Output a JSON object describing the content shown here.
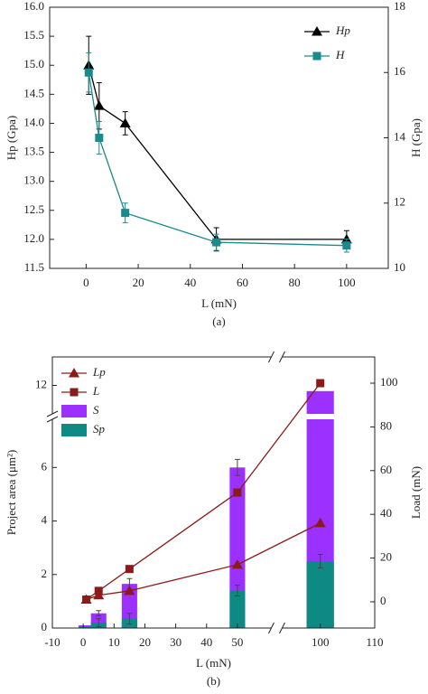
{
  "chart_data": [
    {
      "type": "line",
      "xlabel": "L (mN)",
      "ylabel": "Hp (Gpa)",
      "y2label": "H (Gpa)",
      "caption": "(a)",
      "x": [
        1,
        5,
        15,
        50,
        100
      ],
      "xlim": [
        -14,
        116
      ],
      "xticks": [
        0,
        20,
        40,
        60,
        80,
        100
      ],
      "ylim": [
        11.5,
        16
      ],
      "yticks": [
        11.5,
        {
          "value": 12,
          "label": "12.0"
        },
        12.5,
        {
          "value": 13,
          "label": "13.0"
        },
        13.5,
        {
          "value": 14,
          "label": "14.0"
        },
        14.5,
        {
          "value": 15,
          "label": "15.0"
        },
        15.5,
        {
          "value": 16,
          "label": "16.0"
        }
      ],
      "y2lim": [
        10,
        18
      ],
      "y2ticks": [
        10,
        12,
        14,
        16,
        18
      ],
      "legend": "upper right",
      "series": [
        {
          "name": "Hp",
          "color": "#000000",
          "marker": "triangle",
          "values": [
            15,
            14.3,
            14,
            12,
            12
          ],
          "errors": [
            0.5,
            0.4,
            0.2,
            0.2,
            0.15
          ]
        },
        {
          "name": "H",
          "color": "#1b8a8c",
          "marker": "square",
          "axis": "y2",
          "values": [
            16.0,
            14.0,
            11.7,
            10.8,
            10.7
          ],
          "errors": [
            0.6,
            0.5,
            0.3,
            0.25,
            0.2
          ]
        }
      ]
    },
    {
      "type": "combo",
      "xlabel": "L (mN)",
      "ylabel": "Project area (μm²)",
      "y2label": "Load (mN)",
      "caption": "(b)",
      "x": [
        1,
        5,
        15,
        50,
        100
      ],
      "xlim": [
        -10,
        110
      ],
      "xbreak": [
        61,
        93
      ],
      "xticks": [
        -10,
        0,
        10,
        20,
        30,
        40,
        50,
        100,
        110
      ],
      "ylim": [
        0,
        13
      ],
      "ybreak": [
        7.8,
        11
      ],
      "yticks": [
        0,
        2,
        4,
        6,
        12
      ],
      "y2lim": [
        -12,
        112
      ],
      "y2ticks": [
        0,
        20,
        40,
        60,
        80,
        100
      ],
      "legend": "upper left",
      "series": [
        {
          "name": "Lp",
          "kind": "line",
          "axis": "y2",
          "marker": "triangle",
          "color": "#8b1a1a",
          "values": [
            1,
            3,
            5,
            17,
            36
          ]
        },
        {
          "name": "L",
          "kind": "line",
          "axis": "y2",
          "marker": "square",
          "color": "#8b1a1a",
          "values": [
            1,
            5,
            15,
            50,
            100
          ]
        },
        {
          "name": "S",
          "kind": "bar",
          "color": "#9b30ff",
          "values": [
            0.1,
            0.55,
            1.65,
            6.0,
            11.8
          ],
          "errors": [
            null,
            0.1,
            0.2,
            0.3,
            null
          ]
        },
        {
          "name": "Sp",
          "kind": "bar",
          "color": "#0e8a84",
          "values": [
            0.05,
            0.2,
            0.35,
            1.4,
            2.5
          ],
          "errors": [
            null,
            0.15,
            0.2,
            0.2,
            0.25
          ]
        }
      ]
    }
  ]
}
